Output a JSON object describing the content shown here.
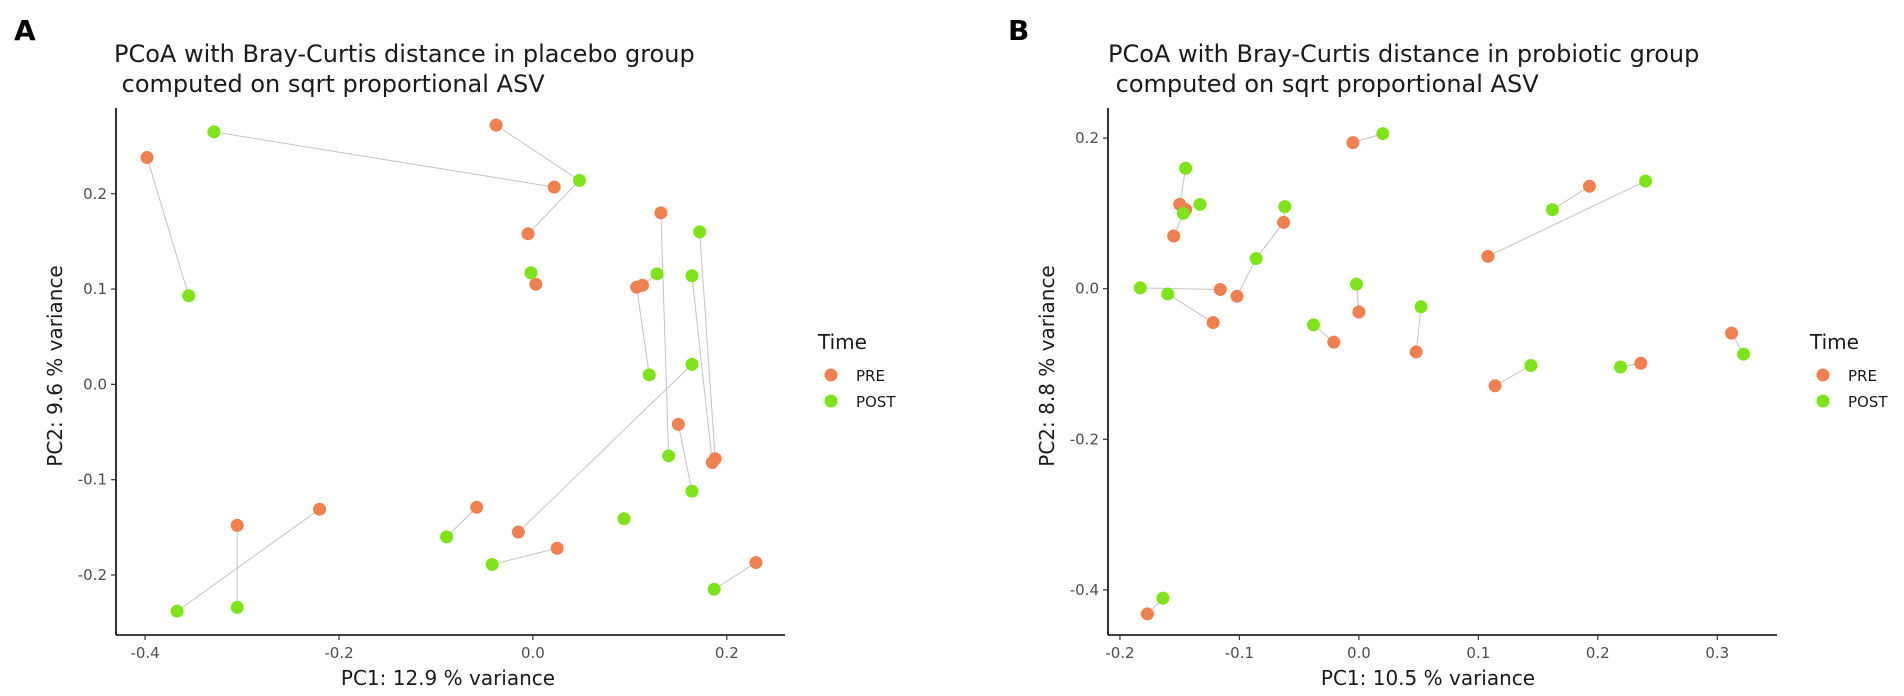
{
  "colors": {
    "PRE": "#F08050",
    "POST": "#7FE31A"
  },
  "chart_data": [
    {
      "type": "scatter",
      "panel": "A",
      "title": [
        "PCoA with Bray-Curtis distance in placebo group",
        " computed on sqrt proportional ASV"
      ],
      "xlabel": "PC1:  12.9 % variance",
      "ylabel": "PC2:  9.6 % variance",
      "xlim": [
        -0.43,
        0.26
      ],
      "ylim": [
        -0.263,
        0.29
      ],
      "xticks": [
        -0.4,
        -0.2,
        0.0,
        0.2
      ],
      "xtick_labels": [
        "-0.4",
        "-0.2",
        "0.0",
        "0.2"
      ],
      "yticks": [
        -0.2,
        -0.1,
        0.0,
        0.1,
        0.2
      ],
      "ytick_labels": [
        "-0.2",
        "-0.1",
        "0.0",
        "0.1",
        "0.2"
      ],
      "legend": {
        "title": "Time",
        "entries": [
          "PRE",
          "POST"
        ],
        "position": "right"
      },
      "pairs": [
        [
          [
            -0.398,
            0.238
          ],
          [
            -0.355,
            0.093
          ]
        ],
        [
          [
            -0.038,
            0.272
          ],
          [
            0.048,
            0.214
          ]
        ],
        [
          [
            0.022,
            0.207
          ],
          [
            -0.329,
            0.265
          ]
        ],
        [
          [
            -0.005,
            0.158
          ],
          [
            0.048,
            0.214
          ]
        ],
        [
          [
            0.003,
            0.105
          ],
          [
            -0.002,
            0.117
          ]
        ],
        [
          [
            0.132,
            0.18
          ],
          [
            0.14,
            -0.075
          ]
        ],
        [
          [
            0.107,
            0.102
          ],
          [
            0.12,
            0.01
          ]
        ],
        [
          [
            0.113,
            0.104
          ],
          [
            0.128,
            0.116
          ]
        ],
        [
          [
            0.188,
            -0.078
          ],
          [
            0.172,
            0.16
          ]
        ],
        [
          [
            0.185,
            -0.082
          ],
          [
            0.164,
            0.114
          ]
        ],
        [
          [
            0.15,
            -0.042
          ],
          [
            0.164,
            -0.112
          ]
        ],
        [
          [
            -0.015,
            -0.155
          ],
          [
            0.164,
            0.021
          ]
        ],
        [
          [
            -0.058,
            -0.129
          ],
          [
            -0.089,
            -0.16
          ]
        ],
        [
          [
            0.025,
            -0.172
          ],
          [
            -0.042,
            -0.189
          ]
        ],
        [
          [
            0.23,
            -0.187
          ],
          [
            0.187,
            -0.215
          ]
        ],
        [
          [
            -0.22,
            -0.131
          ],
          [
            -0.367,
            -0.238
          ]
        ],
        [
          [
            -0.305,
            -0.148
          ],
          [
            -0.305,
            -0.234
          ]
        ],
        [
          [
            0.094,
            -0.141
          ],
          [
            0.094,
            -0.141
          ]
        ]
      ],
      "points": [
        {
          "t": "PRE",
          "x": -0.398,
          "y": 0.238
        },
        {
          "t": "PRE",
          "x": -0.038,
          "y": 0.272
        },
        {
          "t": "PRE",
          "x": 0.022,
          "y": 0.207
        },
        {
          "t": "PRE",
          "x": -0.005,
          "y": 0.158
        },
        {
          "t": "PRE",
          "x": 0.003,
          "y": 0.105
        },
        {
          "t": "PRE",
          "x": 0.132,
          "y": 0.18
        },
        {
          "t": "PRE",
          "x": 0.107,
          "y": 0.102
        },
        {
          "t": "PRE",
          "x": 0.113,
          "y": 0.104
        },
        {
          "t": "PRE",
          "x": 0.15,
          "y": -0.042
        },
        {
          "t": "PRE",
          "x": 0.188,
          "y": -0.078
        },
        {
          "t": "PRE",
          "x": 0.185,
          "y": -0.082
        },
        {
          "t": "PRE",
          "x": -0.058,
          "y": -0.129
        },
        {
          "t": "PRE",
          "x": -0.015,
          "y": -0.155
        },
        {
          "t": "PRE",
          "x": 0.025,
          "y": -0.172
        },
        {
          "t": "PRE",
          "x": 0.23,
          "y": -0.187
        },
        {
          "t": "PRE",
          "x": -0.22,
          "y": -0.131
        },
        {
          "t": "PRE",
          "x": -0.305,
          "y": -0.148
        },
        {
          "t": "POST",
          "x": -0.329,
          "y": 0.265
        },
        {
          "t": "POST",
          "x": -0.355,
          "y": 0.093
        },
        {
          "t": "POST",
          "x": 0.048,
          "y": 0.214
        },
        {
          "t": "POST",
          "x": -0.002,
          "y": 0.117
        },
        {
          "t": "POST",
          "x": 0.172,
          "y": 0.16
        },
        {
          "t": "POST",
          "x": 0.128,
          "y": 0.116
        },
        {
          "t": "POST",
          "x": 0.164,
          "y": 0.114
        },
        {
          "t": "POST",
          "x": 0.164,
          "y": 0.021
        },
        {
          "t": "POST",
          "x": 0.12,
          "y": 0.01
        },
        {
          "t": "POST",
          "x": 0.14,
          "y": -0.075
        },
        {
          "t": "POST",
          "x": 0.164,
          "y": -0.112
        },
        {
          "t": "POST",
          "x": 0.094,
          "y": -0.141
        },
        {
          "t": "POST",
          "x": -0.089,
          "y": -0.16
        },
        {
          "t": "POST",
          "x": -0.042,
          "y": -0.189
        },
        {
          "t": "POST",
          "x": 0.187,
          "y": -0.215
        },
        {
          "t": "POST",
          "x": -0.305,
          "y": -0.234
        },
        {
          "t": "POST",
          "x": -0.367,
          "y": -0.238
        }
      ]
    },
    {
      "type": "scatter",
      "panel": "B",
      "title": [
        "PCoA with Bray-Curtis distance in probiotic group",
        " computed on sqrt proportional ASV"
      ],
      "xlabel": "PC1:  10.5 % variance",
      "ylabel": "PC2:  8.8 % variance",
      "xlim": [
        -0.21,
        0.35
      ],
      "ylim": [
        -0.46,
        0.24
      ],
      "xticks": [
        -0.2,
        -0.1,
        0.0,
        0.1,
        0.2,
        0.3
      ],
      "xtick_labels": [
        "-0.2",
        "-0.1",
        "0.0",
        "0.1",
        "0.2",
        "0.3"
      ],
      "yticks": [
        -0.4,
        -0.2,
        0.0,
        0.2
      ],
      "ytick_labels": [
        "-0.4",
        "-0.2",
        "0.0",
        "0.2"
      ],
      "legend": {
        "title": "Time",
        "entries": [
          "PRE",
          "POST"
        ],
        "position": "right"
      },
      "pairs": [
        [
          [
            -0.005,
            0.194
          ],
          [
            0.02,
            0.206
          ]
        ],
        [
          [
            -0.15,
            0.112
          ],
          [
            -0.145,
            0.16
          ]
        ],
        [
          [
            -0.145,
            0.105
          ],
          [
            -0.133,
            0.112
          ]
        ],
        [
          [
            -0.155,
            0.07
          ],
          [
            -0.147,
            0.1
          ]
        ],
        [
          [
            -0.063,
            0.088
          ],
          [
            -0.086,
            0.04
          ]
        ],
        [
          [
            -0.063,
            0.088
          ],
          [
            -0.062,
            0.109
          ]
        ],
        [
          [
            0.193,
            0.136
          ],
          [
            0.162,
            0.105
          ]
        ],
        [
          [
            0.108,
            0.043
          ],
          [
            0.24,
            0.143
          ]
        ],
        [
          [
            -0.116,
            -0.001
          ],
          [
            -0.183,
            0.001
          ]
        ],
        [
          [
            -0.102,
            -0.01
          ],
          [
            -0.086,
            0.04
          ]
        ],
        [
          [
            -0.122,
            -0.045
          ],
          [
            -0.16,
            -0.007
          ]
        ],
        [
          [
            -0.021,
            -0.071
          ],
          [
            -0.038,
            -0.048
          ]
        ],
        [
          [
            0.0,
            -0.031
          ],
          [
            -0.002,
            0.006
          ]
        ],
        [
          [
            0.048,
            -0.084
          ],
          [
            0.052,
            -0.024
          ]
        ],
        [
          [
            0.114,
            -0.129
          ],
          [
            0.144,
            -0.102
          ]
        ],
        [
          [
            0.236,
            -0.099
          ],
          [
            0.219,
            -0.104
          ]
        ],
        [
          [
            0.312,
            -0.059
          ],
          [
            0.322,
            -0.087
          ]
        ],
        [
          [
            -0.177,
            -0.432
          ],
          [
            -0.164,
            -0.411
          ]
        ]
      ],
      "points": [
        {
          "t": "PRE",
          "x": -0.005,
          "y": 0.194
        },
        {
          "t": "PRE",
          "x": -0.15,
          "y": 0.112
        },
        {
          "t": "PRE",
          "x": -0.145,
          "y": 0.105
        },
        {
          "t": "PRE",
          "x": -0.155,
          "y": 0.07
        },
        {
          "t": "PRE",
          "x": -0.063,
          "y": 0.088
        },
        {
          "t": "PRE",
          "x": 0.193,
          "y": 0.136
        },
        {
          "t": "PRE",
          "x": 0.108,
          "y": 0.043
        },
        {
          "t": "PRE",
          "x": -0.116,
          "y": -0.001
        },
        {
          "t": "PRE",
          "x": -0.102,
          "y": -0.01
        },
        {
          "t": "PRE",
          "x": -0.122,
          "y": -0.045
        },
        {
          "t": "PRE",
          "x": -0.021,
          "y": -0.071
        },
        {
          "t": "PRE",
          "x": 0.0,
          "y": -0.031
        },
        {
          "t": "PRE",
          "x": 0.048,
          "y": -0.084
        },
        {
          "t": "PRE",
          "x": 0.114,
          "y": -0.129
        },
        {
          "t": "PRE",
          "x": 0.236,
          "y": -0.099
        },
        {
          "t": "PRE",
          "x": 0.312,
          "y": -0.059
        },
        {
          "t": "PRE",
          "x": -0.177,
          "y": -0.432
        },
        {
          "t": "POST",
          "x": 0.02,
          "y": 0.206
        },
        {
          "t": "POST",
          "x": -0.145,
          "y": 0.16
        },
        {
          "t": "POST",
          "x": -0.133,
          "y": 0.112
        },
        {
          "t": "POST",
          "x": -0.147,
          "y": 0.1
        },
        {
          "t": "POST",
          "x": -0.062,
          "y": 0.109
        },
        {
          "t": "POST",
          "x": -0.086,
          "y": 0.04
        },
        {
          "t": "POST",
          "x": 0.162,
          "y": 0.105
        },
        {
          "t": "POST",
          "x": 0.24,
          "y": 0.143
        },
        {
          "t": "POST",
          "x": -0.183,
          "y": 0.001
        },
        {
          "t": "POST",
          "x": -0.16,
          "y": -0.007
        },
        {
          "t": "POST",
          "x": -0.002,
          "y": 0.006
        },
        {
          "t": "POST",
          "x": -0.038,
          "y": -0.048
        },
        {
          "t": "POST",
          "x": 0.052,
          "y": -0.024
        },
        {
          "t": "POST",
          "x": 0.144,
          "y": -0.102
        },
        {
          "t": "POST",
          "x": 0.219,
          "y": -0.104
        },
        {
          "t": "POST",
          "x": 0.322,
          "y": -0.087
        },
        {
          "t": "POST",
          "x": -0.164,
          "y": -0.411
        }
      ]
    }
  ]
}
